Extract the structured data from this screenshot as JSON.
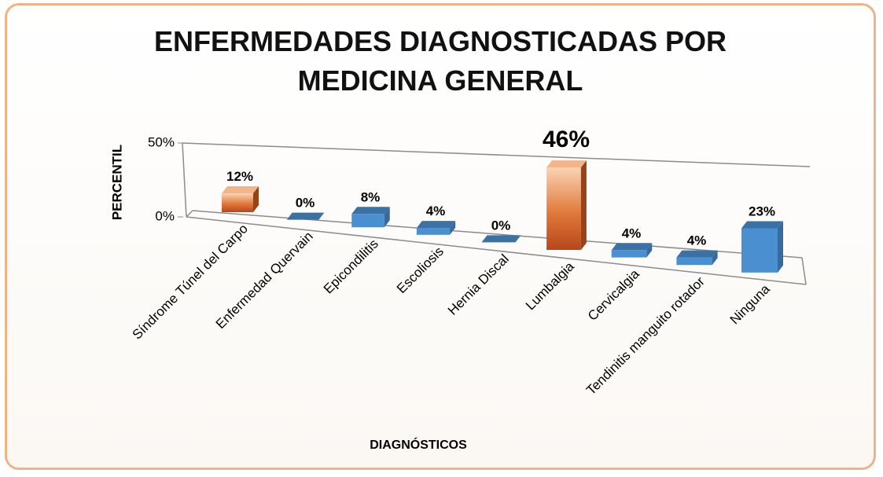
{
  "chart_data": {
    "type": "bar3d",
    "title": "ENFERMEDADES DIAGNOSTICADAS POR MEDICINA GENERAL",
    "y_label": "PERCENTIL",
    "x_label": "DIAGNÓSTICOS",
    "categories": [
      "Síndrome Túnel del Carpo",
      "Enfermedad Quervain",
      "Epicondilitis",
      "Escoliosis",
      "Hernia Discal",
      "Lumbalgia",
      "Cervicalgia",
      "Tendinitis manguito rotador",
      "Ninguna"
    ],
    "values": [
      12,
      0,
      8,
      4,
      0,
      46,
      4,
      4,
      23
    ],
    "value_labels": [
      "12%",
      "0%",
      "8%",
      "4%",
      "0%",
      "46%",
      "4%",
      "4%",
      "23%"
    ],
    "colors": [
      "#c9581e",
      "#4a8fd0",
      "#4a8fd0",
      "#4a8fd0",
      "#4a8fd0",
      "#c9581e",
      "#4a8fd0",
      "#4a8fd0",
      "#4a8fd0"
    ],
    "ylim": [
      0,
      50
    ],
    "yticks": [
      {
        "value": 0,
        "label": "0%"
      },
      {
        "value": 50,
        "label": "50%"
      }
    ]
  }
}
